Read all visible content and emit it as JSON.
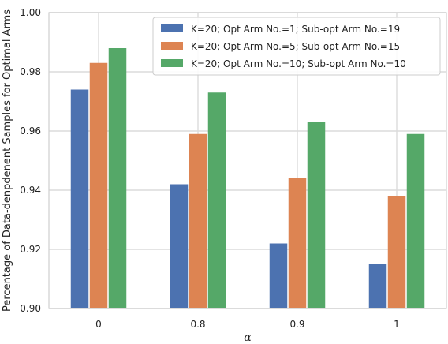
{
  "chart_data": {
    "type": "bar",
    "title": "",
    "xlabel": "α",
    "ylabel": "Percentage of Data-denpdenent Samples for Optimal Arms",
    "categories": [
      "0",
      "0.8",
      "0.9",
      "1"
    ],
    "ylim": [
      0.9,
      1.0
    ],
    "yticks": [
      0.9,
      0.92,
      0.94,
      0.96,
      0.98,
      1.0
    ],
    "ytick_labels": [
      "0.90",
      "0.92",
      "0.94",
      "0.96",
      "0.98",
      "1.00"
    ],
    "grid": true,
    "legend_position": "top-right",
    "series": [
      {
        "name": "K=20; Opt Arm No.=1; Sub-opt Arm No.=19",
        "color": "#4c72b0",
        "values": [
          0.974,
          0.942,
          0.922,
          0.915
        ]
      },
      {
        "name": "K=20; Opt Arm No.=5; Sub-opt Arm No.=15",
        "color": "#dd8452",
        "values": [
          0.983,
          0.959,
          0.944,
          0.938
        ]
      },
      {
        "name": "K=20; Opt Arm No.=10; Sub-opt Arm No.=10",
        "color": "#55a868",
        "values": [
          0.988,
          0.973,
          0.963,
          0.959
        ]
      }
    ]
  }
}
